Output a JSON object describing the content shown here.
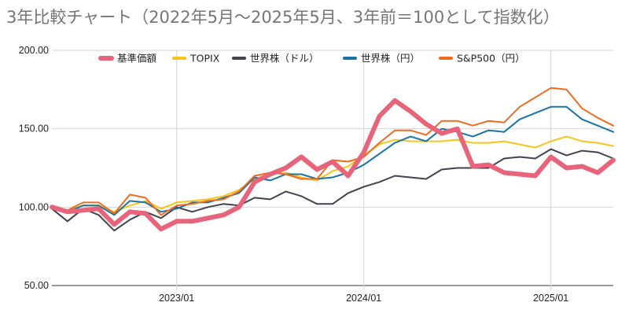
{
  "chart_data": {
    "type": "line",
    "title": "3年比較チャート（2022年5月～2025年5月、3年前＝100として指数化）",
    "xlabel": "",
    "ylabel": "",
    "ylim": [
      50,
      200
    ],
    "yticks": [
      "50.00",
      "100.00",
      "150.00",
      "200.00"
    ],
    "xticks": [
      "2023/01",
      "2024/01",
      "2025/01"
    ],
    "legend_position": "top",
    "grid": "horizontal",
    "x": [
      "2022/05",
      "2022/06",
      "2022/07",
      "2022/08",
      "2022/09",
      "2022/10",
      "2022/11",
      "2022/12",
      "2023/01",
      "2023/02",
      "2023/03",
      "2023/04",
      "2023/05",
      "2023/06",
      "2023/07",
      "2023/08",
      "2023/09",
      "2023/10",
      "2023/11",
      "2023/12",
      "2024/01",
      "2024/02",
      "2024/03",
      "2024/04",
      "2024/05",
      "2024/06",
      "2024/07",
      "2024/08",
      "2024/09",
      "2024/10",
      "2024/11",
      "2024/12",
      "2025/01",
      "2025/02",
      "2025/03",
      "2025/04",
      "2025/05"
    ],
    "series": [
      {
        "name": "基準価額",
        "color": "#e8647a",
        "width": 6,
        "values": [
          100,
          97,
          98,
          99,
          89,
          97,
          96,
          86,
          91,
          91,
          93,
          95,
          100,
          116,
          121,
          125,
          132,
          124,
          129,
          120,
          135,
          158,
          168,
          161,
          153,
          147,
          150,
          126,
          127,
          122,
          121,
          120,
          132,
          125,
          126,
          122,
          130
        ]
      },
      {
        "name": "TOPIX",
        "color": "#f5c518",
        "width": 2,
        "values": [
          100,
          98,
          101,
          101,
          97,
          101,
          104,
          99,
          103,
          104,
          105,
          107,
          111,
          118,
          121,
          122,
          119,
          117,
          123,
          126,
          133,
          140,
          143,
          142,
          142,
          142,
          143,
          141,
          141,
          142,
          140,
          138,
          142,
          145,
          142,
          141,
          139
        ]
      },
      {
        "name": "世界株（ドル）",
        "color": "#424251",
        "width": 2,
        "values": [
          99,
          91,
          99,
          95,
          85,
          92,
          97,
          93,
          100,
          97,
          100,
          102,
          101,
          106,
          105,
          110,
          107,
          102,
          102,
          109,
          113,
          116,
          120,
          119,
          118,
          124,
          125,
          125,
          125,
          131,
          132,
          131,
          137,
          133,
          136,
          135,
          131
        ]
      },
      {
        "name": "世界株（円）",
        "color": "#1a73a8",
        "width": 2,
        "values": [
          100,
          97,
          101,
          101,
          95,
          104,
          103,
          97,
          99,
          103,
          103,
          106,
          109,
          119,
          117,
          121,
          121,
          118,
          119,
          122,
          127,
          134,
          141,
          145,
          142,
          150,
          148,
          145,
          149,
          148,
          156,
          160,
          164,
          164,
          156,
          152,
          148
        ]
      },
      {
        "name": "S&P500（円）",
        "color": "#f26b1d",
        "width": 2,
        "values": [
          100,
          98,
          103,
          103,
          96,
          108,
          106,
          95,
          101,
          102,
          104,
          105,
          110,
          120,
          122,
          121,
          118,
          118,
          130,
          129,
          132,
          141,
          149,
          149,
          146,
          155,
          155,
          152,
          155,
          154,
          164,
          170,
          176,
          175,
          163,
          157,
          152
        ]
      }
    ]
  }
}
